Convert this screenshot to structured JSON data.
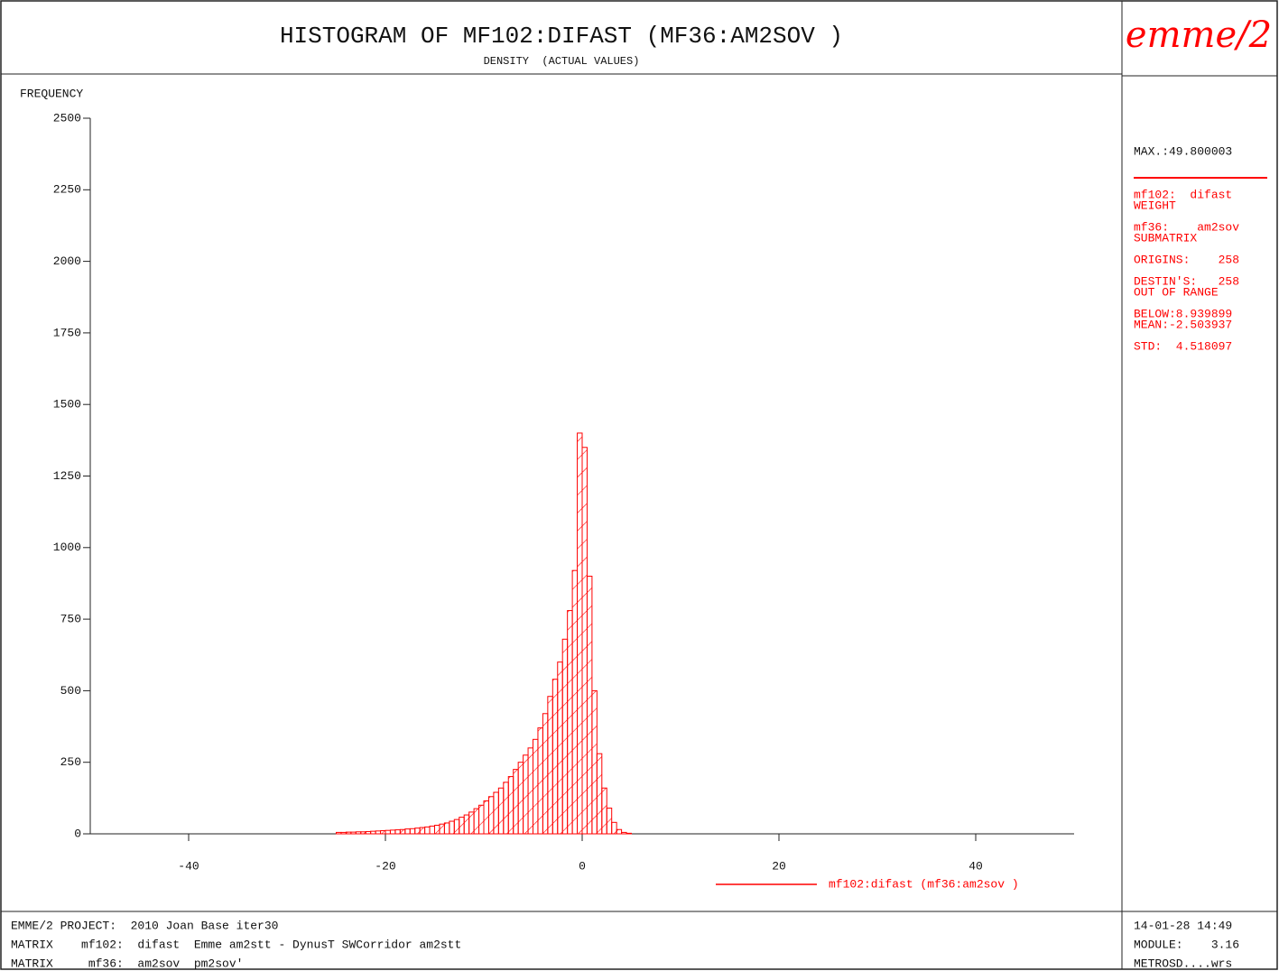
{
  "chart_data": {
    "type": "histogram",
    "title": "HISTOGRAM OF MF102:DIFAST (MF36:AM2SOV )",
    "subtitle": "DENSITY  (ACTUAL VALUES)",
    "logo": "emme/2",
    "y_label": "FREQUENCY",
    "color": "#ff0000",
    "xlim": [
      -50,
      50
    ],
    "xticks": [
      -40,
      -20,
      0,
      20,
      40
    ],
    "ylim": [
      0,
      2500
    ],
    "yticks": [
      0,
      250,
      500,
      750,
      1000,
      1250,
      1500,
      1750,
      2000,
      2250,
      2500
    ],
    "bins": [
      -25,
      -24.5,
      -24,
      -23.5,
      -23,
      -22.5,
      -22,
      -21.5,
      -21,
      -20.5,
      -20,
      -19.5,
      -19,
      -18.5,
      -18,
      -17.5,
      -17,
      -16.5,
      -16,
      -15.5,
      -15,
      -14.5,
      -14,
      -13.5,
      -13,
      -12.5,
      -12,
      -11.5,
      -11,
      -10.5,
      -10,
      -9.5,
      -9,
      -8.5,
      -8,
      -7.5,
      -7,
      -6.5,
      -6,
      -5.5,
      -5,
      -4.5,
      -4,
      -3.5,
      -3,
      -2.5,
      -2,
      -1.5,
      -1,
      -0.5,
      0,
      0.5,
      1,
      1.5,
      2,
      2.5,
      3,
      3.5,
      4,
      4.5,
      5
    ],
    "counts": [
      5,
      5,
      6,
      6,
      7,
      7,
      8,
      9,
      10,
      11,
      12,
      13,
      14,
      15,
      17,
      18,
      20,
      22,
      24,
      27,
      30,
      34,
      38,
      44,
      50,
      58,
      66,
      76,
      88,
      100,
      115,
      130,
      145,
      160,
      180,
      200,
      225,
      250,
      275,
      300,
      330,
      370,
      420,
      480,
      540,
      600,
      680,
      780,
      920,
      1400,
      1350,
      900,
      500,
      280,
      160,
      90,
      40,
      15,
      5,
      2
    ],
    "legend": "mf102:difast (mf36:am2sov )",
    "side_max": "MAX.:49.800003",
    "side_lines": [
      "mf102:  difast",
      "WEIGHT",
      "mf36:    am2sov",
      "SUBMATRIX",
      "ORIGINS:    258",
      "DESTIN'S:   258",
      "OUT OF RANGE",
      "BELOW:8.939899",
      "MEAN:-2.503937",
      "STD:  4.518097"
    ],
    "footer_left": [
      "EMME/2 PROJECT:  2010 Joan Base iter30",
      "MATRIX    mf102:  difast  Emme am2stt - DynusT SWCorridor am2stt",
      "MATRIX     mf36:  am2sov  pm2sov'"
    ],
    "footer_right": [
      "14-01-28 14:49",
      "MODULE:    3.16",
      "METROSD....wrs"
    ]
  }
}
